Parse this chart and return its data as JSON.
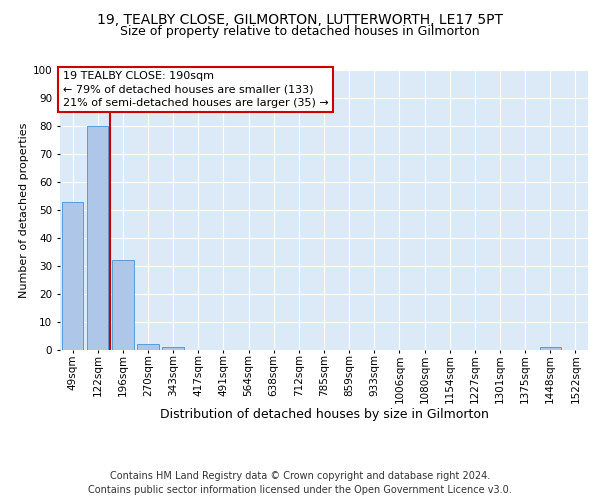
{
  "title1": "19, TEALBY CLOSE, GILMORTON, LUTTERWORTH, LE17 5PT",
  "title2": "Size of property relative to detached houses in Gilmorton",
  "xlabel": "Distribution of detached houses by size in Gilmorton",
  "ylabel": "Number of detached properties",
  "footer1": "Contains HM Land Registry data © Crown copyright and database right 2024.",
  "footer2": "Contains public sector information licensed under the Open Government Licence v3.0.",
  "annotation_lines": [
    "19 TEALBY CLOSE: 190sqm",
    "← 79% of detached houses are smaller (133)",
    "21% of semi-detached houses are larger (35) →"
  ],
  "categories": [
    "49sqm",
    "122sqm",
    "196sqm",
    "270sqm",
    "343sqm",
    "417sqm",
    "491sqm",
    "564sqm",
    "638sqm",
    "712sqm",
    "785sqm",
    "859sqm",
    "933sqm",
    "1006sqm",
    "1080sqm",
    "1154sqm",
    "1227sqm",
    "1301sqm",
    "1375sqm",
    "1448sqm",
    "1522sqm"
  ],
  "values": [
    53,
    80,
    32,
    2,
    1,
    0,
    0,
    0,
    0,
    0,
    0,
    0,
    0,
    0,
    0,
    0,
    0,
    0,
    0,
    1,
    0
  ],
  "bar_color": "#aec6e8",
  "bar_edge_color": "#5b9bd5",
  "red_line_x": 1.5,
  "ylim": [
    0,
    100
  ],
  "background_color": "#ffffff",
  "plot_bg_color": "#dce9f7",
  "grid_color": "#ffffff",
  "annotation_box_edge_color": "#cc0000",
  "red_line_color": "#cc0000",
  "title1_fontsize": 10,
  "title2_fontsize": 9,
  "axis_label_fontsize": 9,
  "ylabel_fontsize": 8,
  "tick_fontsize": 7.5,
  "annotation_fontsize": 8,
  "footer_fontsize": 7
}
